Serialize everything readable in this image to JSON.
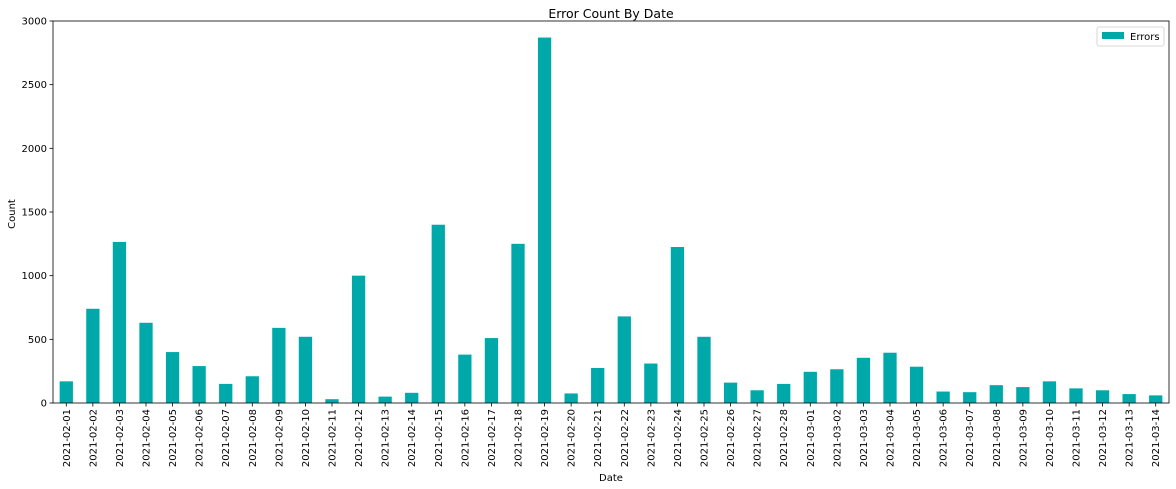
{
  "chart_data": {
    "type": "bar",
    "title": "Error Count By Date",
    "xlabel": "Date",
    "ylabel": "Count",
    "ylim": [
      0,
      3000
    ],
    "yticks": [
      0,
      500,
      1000,
      1500,
      2000,
      2500,
      3000
    ],
    "grid": false,
    "legend": "top-right",
    "categories": [
      "2021-02-01",
      "2021-02-02",
      "2021-02-03",
      "2021-02-04",
      "2021-02-05",
      "2021-02-06",
      "2021-02-07",
      "2021-02-08",
      "2021-02-09",
      "2021-02-10",
      "2021-02-11",
      "2021-02-12",
      "2021-02-13",
      "2021-02-14",
      "2021-02-15",
      "2021-02-16",
      "2021-02-17",
      "2021-02-18",
      "2021-02-19",
      "2021-02-20",
      "2021-02-21",
      "2021-02-22",
      "2021-02-23",
      "2021-02-24",
      "2021-02-25",
      "2021-02-26",
      "2021-02-27",
      "2021-02-28",
      "2021-03-01",
      "2021-03-02",
      "2021-03-03",
      "2021-03-04",
      "2021-03-05",
      "2021-03-06",
      "2021-03-07",
      "2021-03-08",
      "2021-03-09",
      "2021-03-10",
      "2021-03-11",
      "2021-03-12",
      "2021-03-13",
      "2021-03-14"
    ],
    "series": [
      {
        "name": "Errors",
        "color": "#00a9a9",
        "values": [
          170,
          740,
          1265,
          630,
          400,
          290,
          150,
          210,
          590,
          520,
          30,
          1000,
          50,
          80,
          1400,
          380,
          510,
          1250,
          2870,
          75,
          275,
          680,
          310,
          1225,
          520,
          160,
          100,
          150,
          245,
          265,
          355,
          395,
          285,
          90,
          85,
          140,
          125,
          170,
          115,
          100,
          70,
          60
        ]
      }
    ]
  }
}
